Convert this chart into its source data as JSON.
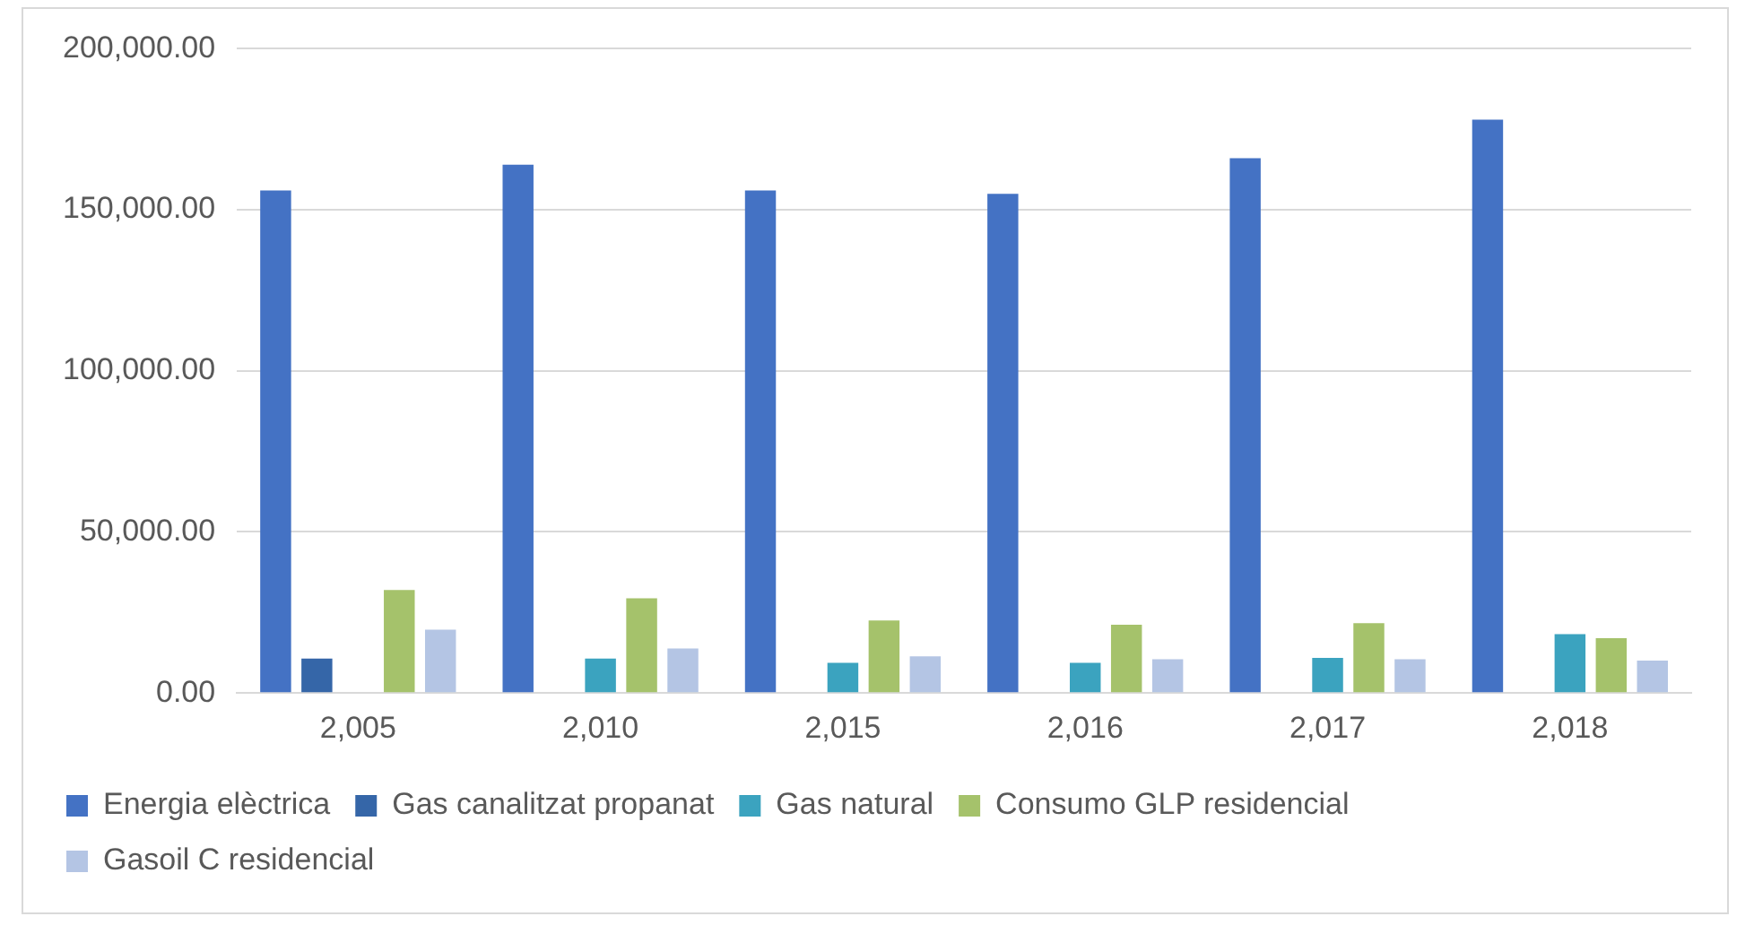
{
  "chart_data": {
    "type": "bar",
    "categories": [
      "2,005",
      "2,010",
      "2,015",
      "2,016",
      "2,017",
      "2,018"
    ],
    "series": [
      {
        "name": "Energia elèctrica",
        "color": "#4472c4",
        "values": [
          156000,
          164000,
          156000,
          155000,
          166000,
          178000
        ]
      },
      {
        "name": "Gas canalitzat propanat",
        "color": "#3566a8",
        "values": [
          10700,
          null,
          null,
          null,
          null,
          null
        ]
      },
      {
        "name": "Gas natural",
        "color": "#3ba3bf",
        "values": [
          null,
          10700,
          9400,
          9400,
          10900,
          18300
        ]
      },
      {
        "name": "Consumo GLP residencial",
        "color": "#a5c26b",
        "values": [
          32000,
          29400,
          22500,
          21200,
          21700,
          17000
        ]
      },
      {
        "name": "Gasoil C residencial",
        "color": "#b4c5e4",
        "values": [
          19700,
          13800,
          11400,
          10500,
          10500,
          10100
        ]
      }
    ],
    "ylim": [
      0,
      200000
    ],
    "yticks": [
      {
        "value": 0,
        "label": "0.00"
      },
      {
        "value": 50000,
        "label": "50,000.00"
      },
      {
        "value": 100000,
        "label": "100,000.00"
      },
      {
        "value": 150000,
        "label": "150,000.00"
      },
      {
        "value": 200000,
        "label": "200,000.00"
      }
    ],
    "grid": "y",
    "legend": "bottom"
  }
}
